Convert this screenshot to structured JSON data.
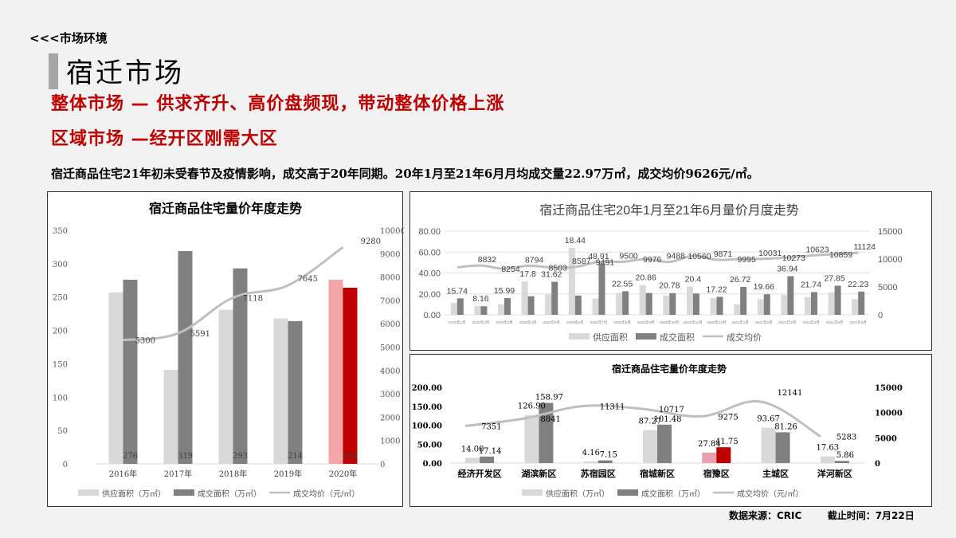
{
  "header": {
    "breadcrumb": "<<<市场环境",
    "page_title": "宿迁市场",
    "headline_1": "整体市场 — 供求齐升、高价盘频现，带动整体价格上涨",
    "headline_2": "区域市场 —经开区刚需大区",
    "summary": "宿迁商品住宅21年初未受春节及疫情影响，成交高于20年同期。20年1月至21年6月月均成交量22.97万㎡，成交均价9626元/㎡。"
  },
  "footer": {
    "source": "数据来源：CRIC",
    "cutoff": "截止时间：7月22日"
  },
  "colors": {
    "accent_red": "#c00000",
    "title_bar": "#a6a6a6",
    "supply": "#d9d9d9",
    "deal": "#808080",
    "price_line": "#bfbfbf",
    "highlight_supply": "#f4a6a6",
    "highlight_deal": "#c00000"
  },
  "chart_data": [
    {
      "type": "bar",
      "title": "宿迁商品住宅量价年度走势",
      "categories": [
        "2016年",
        "2017年",
        "2018年",
        "2019年",
        "2020年"
      ],
      "series": [
        {
          "name": "供应面积（万㎡）",
          "type": "bar",
          "axis": "left",
          "values": [
            257,
            141,
            231,
            218,
            276
          ]
        },
        {
          "name": "成交面积（万㎡）",
          "type": "bar",
          "axis": "left",
          "values": [
            276,
            319,
            293,
            214,
            264
          ]
        },
        {
          "name": "成交均价（元/㎡）",
          "type": "line",
          "axis": "right",
          "values": [
            5300,
            5591,
            7118,
            7645,
            9280
          ]
        }
      ],
      "highlight_index": 4,
      "ylim_left": [
        0,
        350
      ],
      "yticks_left": [
        0,
        50,
        100,
        150,
        200,
        250,
        300,
        350
      ],
      "ylim_right": [
        0,
        10000
      ],
      "yticks_right": [
        0,
        1000,
        2000,
        3000,
        4000,
        5000,
        6000,
        7000,
        8000,
        9000,
        10000
      ],
      "legend": [
        "供应面积（万㎡）",
        "成交面积（万㎡）",
        "成交均价（元/㎡）"
      ],
      "legend_position": "bottom",
      "grid": false
    },
    {
      "type": "bar",
      "title": "宿迁商品住宅20年1月至21年6月量价月度走势",
      "categories": [
        "2020年1月",
        "2020年2月",
        "2020年3月",
        "2020年4月",
        "2020年5月",
        "2020年6月",
        "2020年7月",
        "2020年8月",
        "2020年9月",
        "2020年10月",
        "2020年11月",
        "2020年12月",
        "2021年1月",
        "2021年2月",
        "2021年3月",
        "2021年4月",
        "2021年5月",
        "2021年6月"
      ],
      "series": [
        {
          "name": "供应面积",
          "type": "bar",
          "axis": "left",
          "values": [
            11.5,
            8.5,
            10,
            32,
            19.5,
            64,
            15.5,
            21,
            28.5,
            18.5,
            27,
            16,
            10,
            15,
            19,
            17,
            21.5,
            15
          ]
        },
        {
          "name": "成交面积",
          "type": "bar",
          "axis": "left",
          "values": [
            15.74,
            8.16,
            15.99,
            17.8,
            31.62,
            18.44,
            48.91,
            22.55,
            20.86,
            20.78,
            20.4,
            17.22,
            26.72,
            19.66,
            36.94,
            21.74,
            27.85,
            22.23
          ]
        },
        {
          "name": "成交均价",
          "type": "line",
          "axis": "right",
          "values": [
            8508,
            8832,
            8254,
            8794,
            8503,
            8587,
            9491,
            9500,
            9976,
            9488,
            10560,
            9871,
            9995,
            10031,
            10273,
            10623,
            10859,
            11124
          ]
        }
      ],
      "ylim_left": [
        0,
        80
      ],
      "yticks_left": [
        "0.00",
        "20.00",
        "40.00",
        "60.00",
        "80.00"
      ],
      "ylim_right": [
        0,
        15000
      ],
      "yticks_right": [
        0,
        5000,
        10000,
        15000
      ],
      "legend": [
        "供应面积",
        "成交面积",
        "成交均价"
      ],
      "legend_position": "bottom",
      "grid": true
    },
    {
      "type": "bar",
      "title": "宿迁商品住宅量价年度走势",
      "categories": [
        "经济开发区",
        "湖滨新区",
        "苏宿园区",
        "宿城新区",
        "宿豫区",
        "主城区",
        "洋河新区"
      ],
      "series": [
        {
          "name": "供应面积（万㎡）",
          "type": "bar",
          "axis": "left",
          "values": [
            14.0,
            126.9,
            4.16,
            87.27,
            27.84,
            93.67,
            17.63
          ]
        },
        {
          "name": "成交面积（万㎡）",
          "type": "bar",
          "axis": "left",
          "values": [
            17.14,
            158.97,
            7.15,
            101.48,
            41.75,
            81.26,
            5.86
          ]
        },
        {
          "name": "成交均价（元/㎡）",
          "type": "line",
          "axis": "right",
          "values": [
            7351,
            8841,
            11311,
            10717,
            9275,
            12141,
            5283
          ]
        }
      ],
      "highlight_index": 4,
      "value_labels_supply": [
        "14.00",
        "126.90",
        "4.16",
        "87.27",
        "27.84",
        "93.67",
        "17.63"
      ],
      "value_labels_deal": [
        "17.14",
        "158.97",
        "7.15",
        "101.48",
        "41.75",
        "81.26",
        "5.86"
      ],
      "ylim_left": [
        0,
        200
      ],
      "yticks_left": [
        "0.00",
        "50.00",
        "100.00",
        "150.00",
        "200.00"
      ],
      "ylim_right": [
        0,
        15000
      ],
      "yticks_right": [
        0,
        5000,
        10000,
        15000
      ],
      "legend": [
        "供应面积（万㎡）",
        "成交面积（万㎡）",
        "成交均价（元/㎡）"
      ],
      "legend_position": "bottom",
      "grid": false
    }
  ]
}
